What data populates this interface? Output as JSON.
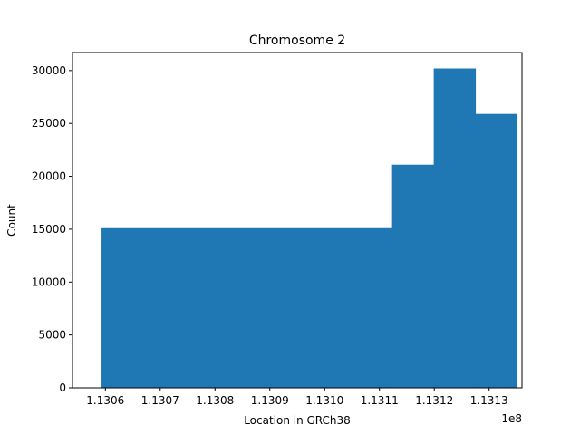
{
  "chart_data": {
    "type": "bar",
    "title": "Chromosome 2",
    "xlabel": "Location in GRCh38",
    "ylabel": "Count",
    "x_offset_label": "1e8",
    "xlim": [
      1.13054,
      1.13136
    ],
    "ylim": [
      0,
      31700
    ],
    "grid": false,
    "legend": "none",
    "bar_color": "#1f77b4",
    "bins": [
      {
        "start": 1.130593,
        "end": 1.131123,
        "count": 15100
      },
      {
        "start": 1.131123,
        "end": 1.131199,
        "count": 21100
      },
      {
        "start": 1.131199,
        "end": 1.131275,
        "count": 30200
      },
      {
        "start": 1.131275,
        "end": 1.131351,
        "count": 25900
      }
    ],
    "x_ticks": [
      {
        "value": 1.1306,
        "label": "1.1306"
      },
      {
        "value": 1.1307,
        "label": "1.1307"
      },
      {
        "value": 1.1308,
        "label": "1.1308"
      },
      {
        "value": 1.1309,
        "label": "1.1309"
      },
      {
        "value": 1.131,
        "label": "1.1310"
      },
      {
        "value": 1.1311,
        "label": "1.1311"
      },
      {
        "value": 1.1312,
        "label": "1.1312"
      },
      {
        "value": 1.1313,
        "label": "1.1313"
      }
    ],
    "y_ticks": [
      {
        "value": 0,
        "label": "0"
      },
      {
        "value": 5000,
        "label": "5000"
      },
      {
        "value": 10000,
        "label": "10000"
      },
      {
        "value": 15000,
        "label": "15000"
      },
      {
        "value": 20000,
        "label": "20000"
      },
      {
        "value": 25000,
        "label": "25000"
      },
      {
        "value": 30000,
        "label": "30000"
      }
    ]
  }
}
